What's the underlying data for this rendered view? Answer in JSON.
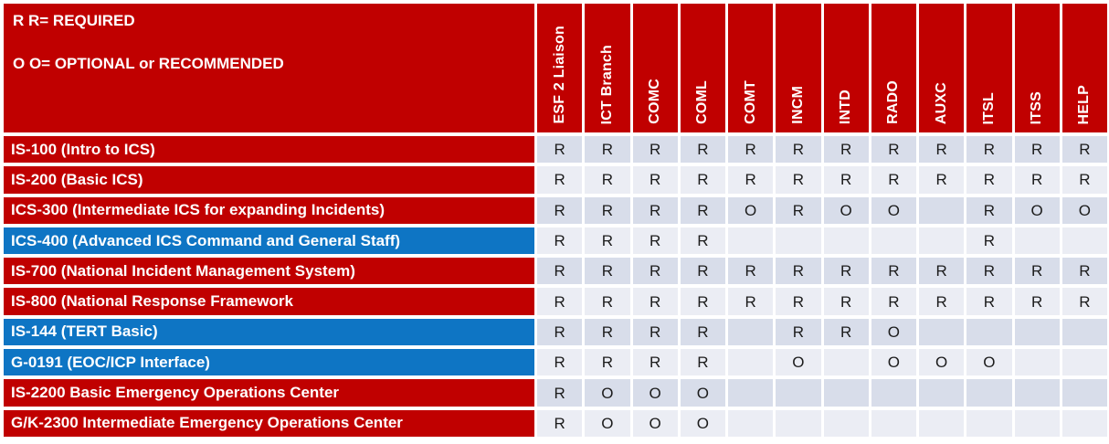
{
  "legend": {
    "required": "R R= REQUIRED",
    "optional": "O O= OPTIONAL or RECOMMENDED"
  },
  "columns": [
    "ESF 2 Liaison",
    "ICT Branch",
    "COMC",
    "COML",
    "COMT",
    "INCM",
    "INTD",
    "RADO",
    "AUXC",
    "ITSL",
    "ITSS",
    "HELP"
  ],
  "rows": [
    {
      "label": "IS-100 (Intro to ICS)",
      "color": "red",
      "cells": [
        "R",
        "R",
        "R",
        "R",
        "R",
        "R",
        "R",
        "R",
        "R",
        "R",
        "R",
        "R"
      ]
    },
    {
      "label": "IS-200 (Basic ICS)",
      "color": "red",
      "cells": [
        "R",
        "R",
        "R",
        "R",
        "R",
        "R",
        "R",
        "R",
        "R",
        "R",
        "R",
        "R"
      ]
    },
    {
      "label": "ICS-300 (Intermediate ICS for expanding Incidents)",
      "color": "red",
      "cells": [
        "R",
        "R",
        "R",
        "R",
        "O",
        "R",
        "O",
        "O",
        "",
        "R",
        "O",
        "O"
      ]
    },
    {
      "label": "ICS-400 (Advanced ICS Command and General Staff)",
      "color": "blue",
      "cells": [
        "R",
        "R",
        "R",
        "R",
        "",
        "",
        "",
        "",
        "",
        "R",
        "",
        ""
      ]
    },
    {
      "label": "IS-700 (National Incident Management System)",
      "color": "red",
      "cells": [
        "R",
        "R",
        "R",
        "R",
        "R",
        "R",
        "R",
        "R",
        "R",
        "R",
        "R",
        "R"
      ]
    },
    {
      "label": "IS-800 (National Response Framework",
      "color": "red",
      "cells": [
        "R",
        "R",
        "R",
        "R",
        "R",
        "R",
        "R",
        "R",
        "R",
        "R",
        "R",
        "R"
      ]
    },
    {
      "label": "IS-144 (TERT Basic)",
      "color": "blue",
      "cells": [
        "R",
        "R",
        "R",
        "R",
        "",
        "R",
        "R",
        "O",
        "",
        "",
        "",
        ""
      ]
    },
    {
      "label": "G-0191 (EOC/ICP Interface)",
      "color": "blue",
      "cells": [
        "R",
        "R",
        "R",
        "R",
        "",
        "O",
        "",
        "O",
        "O",
        "O",
        "",
        ""
      ]
    },
    {
      "label": "IS-2200 Basic Emergency Operations Center",
      "color": "red",
      "cells": [
        "R",
        "O",
        "O",
        "O",
        "",
        "",
        "",
        "",
        "",
        "",
        "",
        ""
      ]
    },
    {
      "label": "G/K-2300 Intermediate Emergency Operations Center",
      "color": "red",
      "cells": [
        "R",
        "O",
        "O",
        "O",
        "",
        "",
        "",
        "",
        "",
        "",
        "",
        ""
      ]
    }
  ],
  "colors": {
    "red": "#C00000",
    "blue": "#0E75C4",
    "band_dark": "#D8DDEA",
    "band_light": "#EBEDF4"
  }
}
